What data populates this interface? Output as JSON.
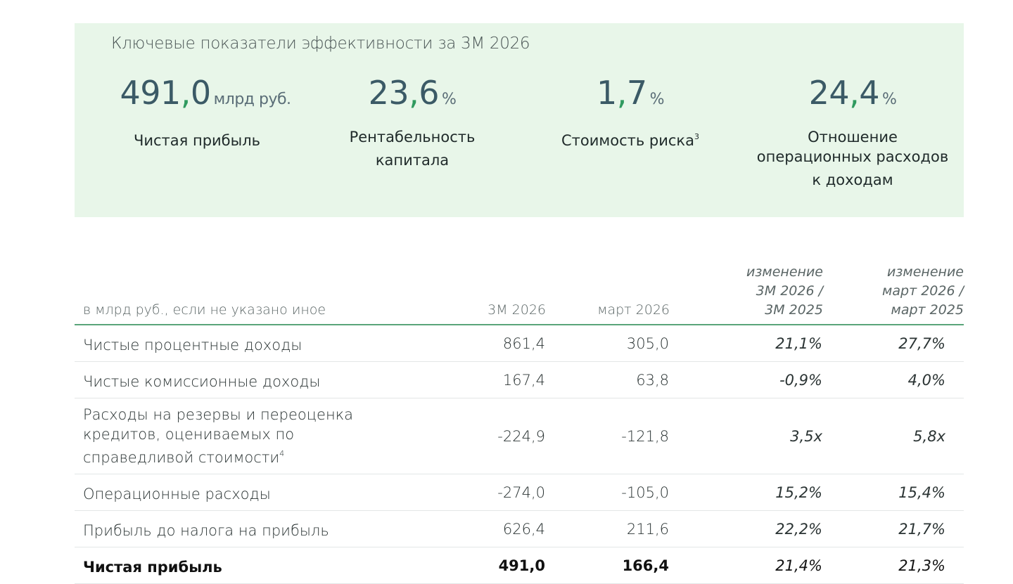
{
  "kpi_panel": {
    "title": "Ключевые показатели эффективности за 3М 2026",
    "items": [
      {
        "int": "491",
        "comma": ",",
        "dec": "0",
        "unit": "млрд руб.",
        "label": "Чистая прибыль",
        "sup": ""
      },
      {
        "int": "23",
        "comma": ",",
        "dec": "6",
        "unit": "%",
        "label": "Рентабельность\nкапитала",
        "sup": ""
      },
      {
        "int": "1",
        "comma": ",",
        "dec": "7",
        "unit": "%",
        "label": "Стоимость риска",
        "sup": "3"
      },
      {
        "int": "24",
        "comma": ",",
        "dec": "4",
        "unit": "%",
        "label": "Отношение\nоперационных расходов\nк доходам",
        "sup": ""
      }
    ]
  },
  "table": {
    "headers": {
      "label": "в млрд руб., если не указано иное",
      "col1": "3М 2026",
      "col2": "март 2026",
      "col3": "изменение\n3М 2026 /\n3М 2025",
      "col4": "изменение\nмарт 2026 /\nмарт 2025"
    },
    "rows": [
      {
        "label": "Чистые процентные доходы",
        "sup": "",
        "v1": "861,4",
        "v2": "305,0",
        "c1": "21,1%",
        "c2": "27,7%"
      },
      {
        "label": "Чистые комиссионные доходы",
        "sup": "",
        "v1": "167,4",
        "v2": "63,8",
        "c1": "-0,9%",
        "c2": "4,0%"
      },
      {
        "label": "Расходы на резервы и переоценка\nкредитов, оцениваемых по\nсправедливой стоимости",
        "sup": "4",
        "v1": "-224,9",
        "v2": "-121,8",
        "c1": "3,5x",
        "c2": "5,8x"
      },
      {
        "label": "Операционные расходы",
        "sup": "",
        "v1": "-274,0",
        "v2": "-105,0",
        "c1": "15,2%",
        "c2": "15,4%"
      },
      {
        "label": "Прибыль до налога на прибыль",
        "sup": "",
        "v1": "626,4",
        "v2": "211,6",
        "c1": "22,2%",
        "c2": "21,7%"
      },
      {
        "label": "Чистая прибыль",
        "sup": "",
        "v1": "491,0",
        "v2": "166,4",
        "c1": "21,4%",
        "c2": "21,3%"
      }
    ]
  }
}
